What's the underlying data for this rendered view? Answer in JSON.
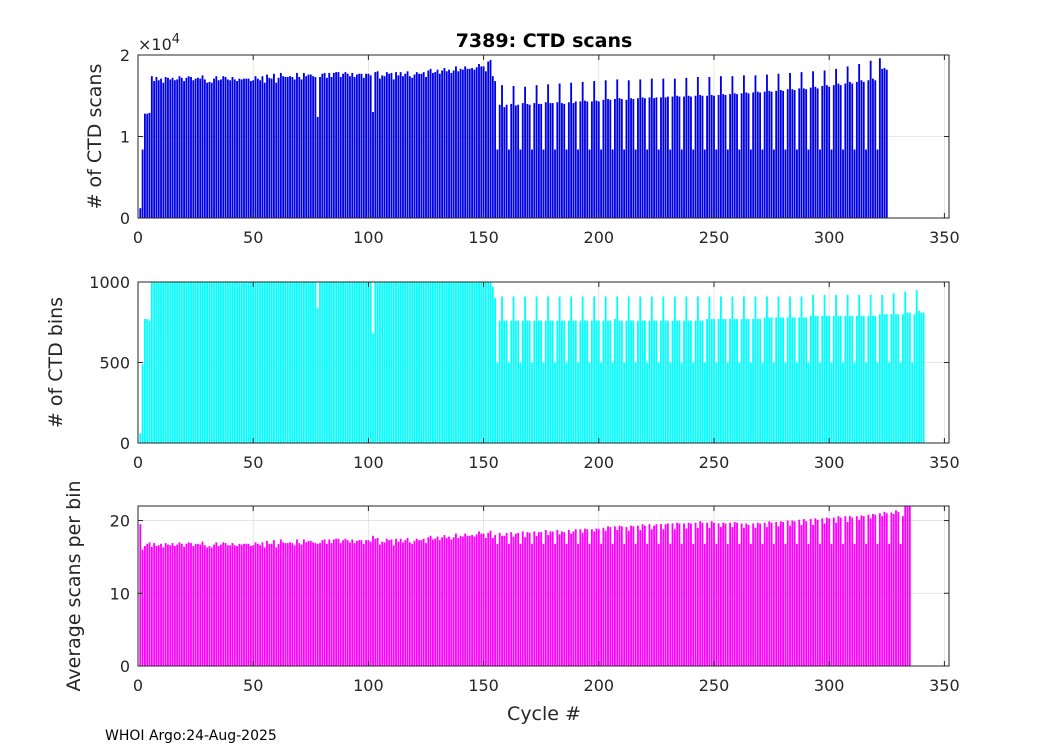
{
  "figure": {
    "title": "7389: CTD scans",
    "xlabel": "Cycle #",
    "footer": "WHOI Argo:24-Aug-2025"
  },
  "chart_data": [
    {
      "type": "bar",
      "name": "ctd-scans",
      "ylabel": "# of CTD scans",
      "color": "#0000e6",
      "xlim": [
        0,
        352
      ],
      "ylim": [
        0,
        20000
      ],
      "xticks": [
        0,
        50,
        100,
        150,
        200,
        250,
        300,
        350
      ],
      "yticks": [
        0,
        10000,
        20000
      ],
      "ytick_labels": [
        "0",
        "1",
        "2"
      ],
      "y_exponent_label": "×10",
      "y_exponent_power": "4",
      "x_start": 1,
      "values": [
        1200,
        8400,
        12800,
        12800,
        12900,
        17400,
        16800,
        17300,
        16900,
        17100,
        16600,
        17300,
        17200,
        17000,
        17200,
        16900,
        17000,
        17400,
        17200,
        16800,
        17200,
        17400,
        17300,
        16900,
        17100,
        17200,
        17100,
        17500,
        17000,
        16600,
        16700,
        16600,
        17100,
        17400,
        16900,
        17000,
        17400,
        17300,
        17000,
        16900,
        17300,
        17000,
        16800,
        17100,
        17000,
        17100,
        17100,
        17100,
        16800,
        16900,
        17400,
        17100,
        16900,
        17400,
        16600,
        17600,
        17200,
        17100,
        17700,
        16600,
        17200,
        17800,
        17400,
        17300,
        17300,
        17400,
        17300,
        17000,
        17800,
        17300,
        17000,
        17800,
        17400,
        17600,
        17600,
        17400,
        17300,
        12400,
        17300,
        17700,
        17800,
        17200,
        17800,
        17300,
        17800,
        17900,
        17900,
        17300,
        17700,
        17900,
        17700,
        17400,
        17800,
        17300,
        17600,
        17700,
        17700,
        17200,
        17700,
        17700,
        17500,
        13000,
        17900,
        18000,
        17100,
        17500,
        17400,
        17900,
        17700,
        17800,
        17000,
        17900,
        17500,
        17900,
        17400,
        17700,
        18000,
        17400,
        17200,
        17600,
        17900,
        17700,
        17700,
        17900,
        17300,
        18100,
        18300,
        17800,
        17900,
        18200,
        17700,
        18100,
        18400,
        18000,
        18200,
        17800,
        18100,
        18600,
        18000,
        18300,
        18200,
        18600,
        18300,
        18300,
        18400,
        18200,
        18500,
        18900,
        18600,
        18600,
        18000,
        19200,
        19400,
        17400,
        16800,
        8400,
        13900,
        16300,
        13600,
        13900,
        8400,
        14000,
        16200,
        13800,
        13900,
        8400,
        14100,
        16100,
        14000,
        13900,
        8400,
        14100,
        16300,
        14000,
        14000,
        8400,
        14200,
        16400,
        14100,
        14100,
        8400,
        14200,
        16500,
        14100,
        14000,
        8400,
        14200,
        16600,
        14100,
        14300,
        8400,
        14300,
        16700,
        14400,
        14300,
        8400,
        14300,
        16800,
        14400,
        14300,
        8400,
        14500,
        16900,
        14600,
        14500,
        8400,
        14600,
        17000,
        14700,
        14600,
        8400,
        14500,
        16900,
        14700,
        14600,
        8400,
        14700,
        17000,
        14800,
        14700,
        8400,
        14800,
        17100,
        14700,
        14800,
        8400,
        14800,
        17100,
        14800,
        14900,
        8400,
        14900,
        17100,
        15000,
        14900,
        8400,
        14900,
        17200,
        15000,
        14900,
        8400,
        15000,
        17300,
        15100,
        15000,
        8400,
        15000,
        17300,
        15100,
        15000,
        8400,
        15100,
        17400,
        15200,
        15100,
        8400,
        15200,
        17400,
        15300,
        15200,
        8400,
        15300,
        17500,
        15400,
        15300,
        8400,
        15400,
        17500,
        15500,
        15400,
        8400,
        15500,
        17600,
        15600,
        15500,
        8400,
        15600,
        17700,
        15700,
        15600,
        8400,
        15800,
        17800,
        15800,
        15700,
        8400,
        15900,
        17900,
        15900,
        15800,
        8400,
        16000,
        18000,
        16100,
        15900,
        8400,
        16200,
        18100,
        16300,
        16100,
        8400,
        16300,
        18300,
        16500,
        16300,
        8400,
        16500,
        18600,
        16700,
        16500,
        8400,
        16700,
        18900,
        16900,
        16700,
        8400,
        16900,
        19300,
        17100,
        16900,
        8400,
        19600,
        18300,
        18400,
        18200
      ]
    },
    {
      "type": "bar",
      "name": "ctd-bins",
      "ylabel": "# of CTD bins",
      "color": "#00ffff",
      "xlim": [
        0,
        352
      ],
      "ylim": [
        0,
        1000
      ],
      "xticks": [
        0,
        50,
        100,
        150,
        200,
        250,
        300,
        350
      ],
      "yticks": [
        0,
        500,
        1000
      ],
      "ytick_labels": [
        "0",
        "500",
        "1000"
      ],
      "x_start": 1,
      "values": [
        60,
        490,
        770,
        770,
        760,
        1010,
        1010,
        1010,
        1010,
        1010,
        1010,
        1010,
        1010,
        1010,
        1010,
        1010,
        1010,
        1010,
        1010,
        1010,
        1010,
        1010,
        1010,
        1010,
        1010,
        1010,
        1010,
        1010,
        1010,
        1010,
        1010,
        1010,
        1010,
        1010,
        1010,
        1010,
        1010,
        1010,
        1010,
        1010,
        1010,
        1010,
        1010,
        1010,
        1010,
        1010,
        1010,
        1010,
        1010,
        1010,
        1010,
        1010,
        1010,
        1010,
        1010,
        1010,
        1010,
        1010,
        1010,
        1010,
        1010,
        1010,
        1010,
        1010,
        1010,
        1010,
        1010,
        1010,
        1010,
        1010,
        1010,
        1010,
        1010,
        1010,
        1010,
        1010,
        1010,
        840,
        1010,
        1010,
        1010,
        1010,
        1010,
        1010,
        1010,
        1010,
        1010,
        1010,
        1010,
        1010,
        1010,
        1010,
        1010,
        1010,
        1010,
        1010,
        1010,
        1010,
        1010,
        1010,
        1010,
        680,
        1010,
        1010,
        1010,
        1010,
        1010,
        1010,
        1010,
        1010,
        1010,
        1010,
        1010,
        1010,
        1010,
        1010,
        1010,
        1010,
        1010,
        1010,
        1010,
        1010,
        1010,
        1010,
        1010,
        1010,
        1010,
        1010,
        1010,
        1010,
        1010,
        1010,
        1010,
        1010,
        1010,
        1010,
        1010,
        1010,
        1010,
        1010,
        1010,
        1010,
        1010,
        1010,
        1010,
        1010,
        1010,
        1010,
        1010,
        1010,
        1010,
        1010,
        1010,
        970,
        900,
        500,
        760,
        910,
        760,
        760,
        500,
        760,
        910,
        760,
        760,
        500,
        760,
        910,
        760,
        760,
        500,
        760,
        910,
        760,
        760,
        500,
        760,
        910,
        760,
        760,
        500,
        760,
        910,
        760,
        760,
        500,
        760,
        910,
        760,
        760,
        500,
        760,
        910,
        760,
        760,
        500,
        760,
        910,
        760,
        760,
        500,
        760,
        910,
        760,
        760,
        500,
        770,
        910,
        760,
        760,
        500,
        760,
        910,
        760,
        760,
        500,
        760,
        910,
        760,
        760,
        500,
        760,
        910,
        760,
        760,
        500,
        760,
        910,
        760,
        760,
        500,
        760,
        910,
        760,
        760,
        500,
        760,
        910,
        760,
        760,
        500,
        760,
        910,
        760,
        760,
        500,
        770,
        910,
        770,
        770,
        500,
        770,
        910,
        770,
        770,
        500,
        770,
        910,
        770,
        770,
        500,
        770,
        910,
        770,
        770,
        500,
        770,
        910,
        770,
        770,
        500,
        780,
        910,
        780,
        780,
        500,
        780,
        910,
        780,
        780,
        500,
        780,
        910,
        780,
        780,
        500,
        780,
        910,
        780,
        780,
        500,
        790,
        920,
        790,
        790,
        500,
        790,
        920,
        790,
        790,
        500,
        790,
        920,
        790,
        790,
        500,
        790,
        920,
        790,
        790,
        500,
        790,
        920,
        790,
        790,
        500,
        790,
        920,
        790,
        790,
        500,
        800,
        920,
        800,
        800,
        500,
        800,
        930,
        800,
        800,
        500,
        800,
        940,
        810,
        810,
        500,
        800,
        950,
        820,
        810,
        810
      ]
    },
    {
      "type": "bar",
      "name": "avg-scans-per-bin",
      "ylabel": "Average scans per bin",
      "color": "#ff00ff",
      "xlim": [
        0,
        352
      ],
      "ylim": [
        0,
        22
      ],
      "xticks": [
        0,
        50,
        100,
        150,
        200,
        250,
        300,
        350
      ],
      "yticks": [
        0,
        10,
        20
      ],
      "ytick_labels": [
        "0",
        "10",
        "20"
      ],
      "x_start": 1,
      "values": [
        19.5,
        16.0,
        16.5,
        16.8,
        17.0,
        16.4,
        16.9,
        16.5,
        16.6,
        16.8,
        16.3,
        16.9,
        16.7,
        16.6,
        16.9,
        16.5,
        16.7,
        17.0,
        16.8,
        16.4,
        16.8,
        17.0,
        16.9,
        16.5,
        16.8,
        16.8,
        16.7,
        17.1,
        16.6,
        16.3,
        16.5,
        16.3,
        16.7,
        17.0,
        16.5,
        16.7,
        17.0,
        16.9,
        16.6,
        16.6,
        16.9,
        16.6,
        16.5,
        16.8,
        16.7,
        16.8,
        16.8,
        16.8,
        16.5,
        16.6,
        17.0,
        16.8,
        16.6,
        17.0,
        16.3,
        17.2,
        16.8,
        16.8,
        17.3,
        16.3,
        16.8,
        17.4,
        17.0,
        16.9,
        16.9,
        17.0,
        16.9,
        16.6,
        17.4,
        16.9,
        16.7,
        17.4,
        17.0,
        17.2,
        17.2,
        17.0,
        16.9,
        16.8,
        16.9,
        17.3,
        17.4,
        16.8,
        17.4,
        16.9,
        17.4,
        17.5,
        17.5,
        16.9,
        17.3,
        17.5,
        17.3,
        17.0,
        17.4,
        16.9,
        17.2,
        17.3,
        17.3,
        16.8,
        17.3,
        17.3,
        17.1,
        17.9,
        17.5,
        17.6,
        16.7,
        17.1,
        17.0,
        17.5,
        17.3,
        17.4,
        16.6,
        17.5,
        17.1,
        17.5,
        17.0,
        17.3,
        17.6,
        17.0,
        16.8,
        17.2,
        17.5,
        17.3,
        17.3,
        17.5,
        16.9,
        17.7,
        17.9,
        17.4,
        17.5,
        17.8,
        17.3,
        17.7,
        18.0,
        17.6,
        17.8,
        17.4,
        17.7,
        18.2,
        17.6,
        17.9,
        17.8,
        18.2,
        17.9,
        17.9,
        18.0,
        17.8,
        18.1,
        18.5,
        18.2,
        18.2,
        17.6,
        18.3,
        18.6,
        17.6,
        18.0,
        16.8,
        18.3,
        17.9,
        17.9,
        18.3,
        16.8,
        18.4,
        17.8,
        18.2,
        18.3,
        16.8,
        18.5,
        17.7,
        18.4,
        18.3,
        16.8,
        18.5,
        17.9,
        18.4,
        18.4,
        16.8,
        18.7,
        18.0,
        18.5,
        18.5,
        16.8,
        18.7,
        18.1,
        18.5,
        18.4,
        16.8,
        18.7,
        18.2,
        18.5,
        18.8,
        16.8,
        18.8,
        18.3,
        18.9,
        18.8,
        16.8,
        18.8,
        18.5,
        18.9,
        18.8,
        16.8,
        19.0,
        18.6,
        19.2,
        19.1,
        16.8,
        19.2,
        18.7,
        19.3,
        19.2,
        16.8,
        19.1,
        18.6,
        19.3,
        19.2,
        16.8,
        19.3,
        18.7,
        19.5,
        19.3,
        16.8,
        19.5,
        18.8,
        19.3,
        19.5,
        16.8,
        19.5,
        18.8,
        19.5,
        19.6,
        16.8,
        19.6,
        18.8,
        19.7,
        19.6,
        16.8,
        19.6,
        18.9,
        19.7,
        19.6,
        16.8,
        19.7,
        19.0,
        19.9,
        19.7,
        16.8,
        19.7,
        19.0,
        19.9,
        19.7,
        16.8,
        19.6,
        19.1,
        19.7,
        19.6,
        16.8,
        19.7,
        19.1,
        19.8,
        19.7,
        16.8,
        19.6,
        19.0,
        19.6,
        19.4,
        16.8,
        19.6,
        19.0,
        19.7,
        19.6,
        16.8,
        19.7,
        19.1,
        19.9,
        19.7,
        16.8,
        19.8,
        19.2,
        19.9,
        19.8,
        16.8,
        20.0,
        19.3,
        20.0,
        19.9,
        16.8,
        20.1,
        19.4,
        20.2,
        19.9,
        16.8,
        20.2,
        19.4,
        20.3,
        20.1,
        16.8,
        20.3,
        19.6,
        20.4,
        20.3,
        16.8,
        20.4,
        19.7,
        20.6,
        20.4,
        16.8,
        20.6,
        19.8,
        20.6,
        20.4,
        16.8,
        20.6,
        20.1,
        20.7,
        20.6,
        16.8,
        20.8,
        20.3,
        20.9,
        20.8,
        16.8,
        21.0,
        20.6,
        21.2,
        21.0,
        16.8,
        21.1,
        20.9,
        21.4,
        21.2,
        16.8,
        20.6,
        22.4,
        22.5,
        22.4
      ]
    }
  ]
}
